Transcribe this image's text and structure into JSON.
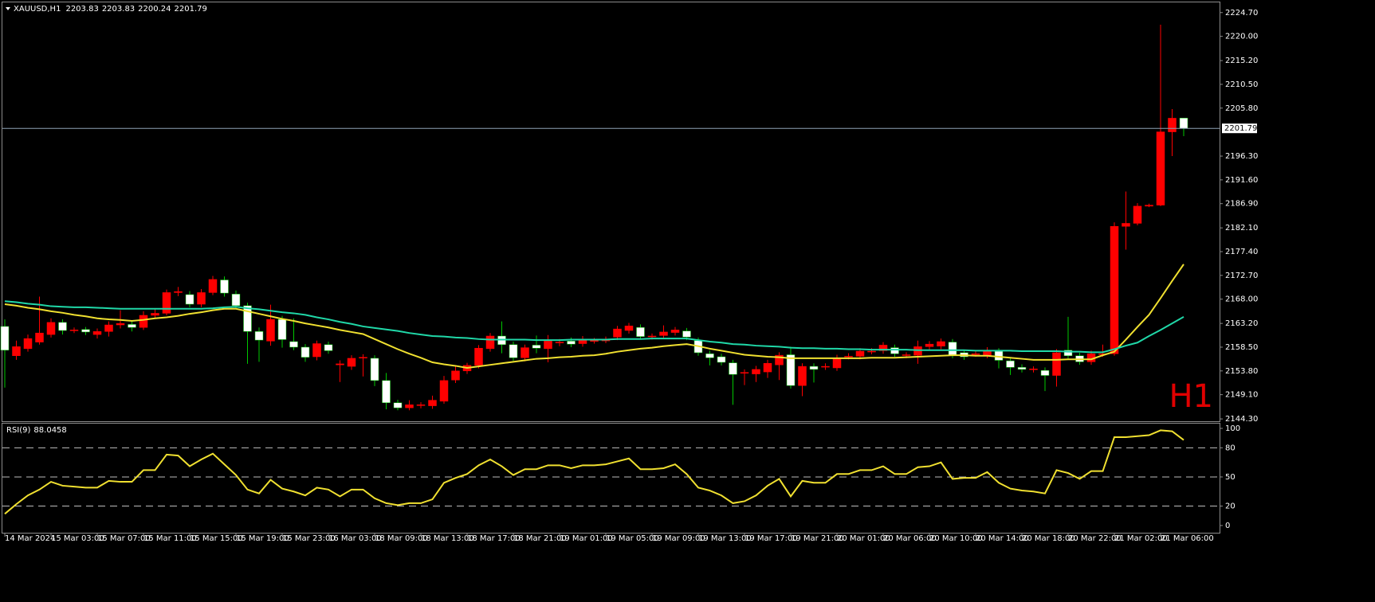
{
  "chart_data": [
    {
      "type": "candlestick",
      "symbol": "XAUUSD,H1",
      "watermark": "H1",
      "categories": [
        "14 Mar 2024",
        null,
        null,
        null,
        "15 Mar 03:00",
        null,
        null,
        null,
        "15 Mar 07:00",
        null,
        null,
        null,
        "15 Mar 11:00",
        null,
        null,
        null,
        "15 Mar 15:00",
        null,
        null,
        null,
        "15 Mar 19:00",
        null,
        null,
        null,
        "15 Mar 23:00",
        null,
        null,
        null,
        "16 Mar 03:00",
        null,
        null,
        null,
        "18 Mar 09:00",
        null,
        null,
        null,
        "18 Mar 13:00",
        null,
        null,
        null,
        "18 Mar 17:00",
        null,
        null,
        null,
        "18 Mar 21:00",
        null,
        null,
        null,
        "19 Mar 01:00",
        null,
        null,
        null,
        "19 Mar 05:00",
        null,
        null,
        null,
        "19 Mar 09:00",
        null,
        null,
        null,
        "19 Mar 13:00",
        null,
        null,
        null,
        "19 Mar 17:00",
        null,
        null,
        null,
        "19 Mar 21:00",
        null,
        null,
        null,
        "20 Mar 01:00",
        null,
        null,
        null,
        "20 Mar 06:00",
        null,
        null,
        null,
        "20 Mar 10:00",
        null,
        null,
        null,
        "20 Mar 14:00",
        null,
        null,
        null,
        "20 Mar 18:00",
        null,
        null,
        null,
        "20 Mar 22:00",
        null,
        null,
        null,
        "21 Mar 02:00",
        null,
        null,
        null,
        "21 Mar 06:00",
        null,
        null
      ],
      "open": [
        2162.6,
        2156.8,
        2158.2,
        2159.5,
        2161.0,
        2163.4,
        2161.8,
        2162.0,
        2161.0,
        2161.6,
        2162.9,
        2163.0,
        2162.4,
        2164.8,
        2165.2,
        2169.3,
        2168.9,
        2167.0,
        2169.3,
        2171.8,
        2169.0,
        2166.7,
        2161.6,
        2159.7,
        2164.0,
        2159.6,
        2158.5,
        2156.6,
        2159.0,
        2155.0,
        2154.7,
        2156.4,
        2156.3,
        2151.9,
        2147.5,
        2146.5,
        2147.0,
        2146.9,
        2147.8,
        2152.0,
        2153.8,
        2154.9,
        2158.2,
        2160.7,
        2159.0,
        2156.4,
        2158.9,
        2158.2,
        2159.4,
        2159.7,
        2159.2,
        2159.7,
        2159.8,
        2160.5,
        2161.8,
        2162.4,
        2160.6,
        2160.8,
        2161.4,
        2161.7,
        2159.8,
        2157.2,
        2156.6,
        2155.4,
        2153.4,
        2153.2,
        2153.6,
        2155.0,
        2157.0,
        2150.9,
        2154.7,
        2154.6,
        2154.4,
        2156.6,
        2156.7,
        2157.6,
        2157.8,
        2158.4,
        2156.9,
        2156.9,
        2158.6,
        2158.7,
        2159.5,
        2157.4,
        2157.1,
        2156.9,
        2157.7,
        2155.8,
        2154.5,
        2154.1,
        2153.9,
        2152.9,
        2157.9,
        2156.8,
        2155.6,
        2157.1,
        2157.2,
        2182.4,
        2183.0,
        2186.4,
        2186.6,
        2201.1,
        2203.83
      ],
      "high": [
        2164.0,
        2159.8,
        2161.0,
        2168.5,
        2164.2,
        2164.0,
        2162.4,
        2162.5,
        2162.2,
        2163.6,
        2165.8,
        2163.8,
        2165.6,
        2166.0,
        2169.9,
        2170.4,
        2169.6,
        2170.0,
        2172.6,
        2172.5,
        2169.7,
        2167.3,
        2162.4,
        2166.9,
        2164.7,
        2164.2,
        2159.1,
        2159.8,
        2159.6,
        2155.9,
        2156.9,
        2157.1,
        2156.9,
        2153.4,
        2148.1,
        2148.0,
        2147.6,
        2148.9,
        2152.8,
        2154.7,
        2155.4,
        2158.9,
        2161.3,
        2163.6,
        2159.6,
        2159.0,
        2160.8,
        2160.9,
        2160.1,
        2160.4,
        2160.7,
        2160.3,
        2160.6,
        2162.7,
        2163.3,
        2163.0,
        2161.2,
        2162.8,
        2162.5,
        2162.3,
        2160.4,
        2157.8,
        2157.2,
        2156.0,
        2154.1,
        2154.8,
        2156.0,
        2157.5,
        2158.6,
        2155.3,
        2155.3,
        2155.3,
        2157.0,
        2157.3,
        2158.3,
        2158.3,
        2159.5,
        2159.0,
        2157.5,
        2159.8,
        2159.7,
        2160.2,
        2160.1,
        2158.0,
        2157.8,
        2158.5,
        2158.3,
        2156.4,
        2155.1,
        2154.7,
        2154.5,
        2158.1,
        2164.5,
        2157.4,
        2157.8,
        2159.0,
        2183.2,
        2189.3,
        2187.0,
        2186.9,
        2222.3,
        2205.6,
        2203.83
      ],
      "low": [
        2150.5,
        2156.0,
        2157.6,
        2159.0,
        2160.4,
        2161.0,
        2161.3,
        2160.9,
        2160.2,
        2160.6,
        2162.2,
        2161.6,
        2161.9,
        2164.1,
        2164.8,
        2168.6,
        2166.4,
        2166.4,
        2168.8,
        2168.5,
        2166.0,
        2155.2,
        2155.6,
        2158.8,
        2158.4,
        2157.9,
        2155.6,
        2155.9,
        2157.2,
        2151.6,
        2154.0,
        2152.7,
        2150.8,
        2146.2,
        2146.0,
        2146.0,
        2146.4,
        2146.3,
        2147.3,
        2151.4,
        2153.2,
        2154.3,
        2157.6,
        2157.3,
        2155.8,
        2155.7,
        2157.3,
        2155.5,
        2158.7,
        2158.5,
        2158.6,
        2159.2,
        2159.3,
        2159.9,
        2161.2,
        2160.0,
        2160.0,
        2160.2,
        2160.8,
        2159.9,
        2156.8,
        2154.9,
        2154.9,
        2147.1,
        2151.0,
        2151.6,
        2152.4,
        2152.0,
        2150.3,
        2148.8,
        2151.5,
        2154.0,
        2153.8,
        2156.1,
        2156.1,
        2157.1,
        2157.2,
        2156.6,
        2156.3,
        2155.2,
        2158.0,
        2158.1,
        2156.3,
        2156.0,
        2156.6,
        2156.3,
        2154.3,
        2153.0,
        2153.5,
        2153.5,
        2149.8,
        2150.7,
        2156.2,
        2155.0,
        2155.0,
        2156.6,
        2156.8,
        2177.8,
        2182.6,
        2186.2,
        2186.4,
        2196.3,
        2200.24
      ],
      "close": [
        2157.9,
        2158.6,
        2160.2,
        2161.3,
        2163.4,
        2161.8,
        2161.9,
        2161.5,
        2161.6,
        2162.9,
        2163.2,
        2162.4,
        2164.8,
        2165.2,
        2169.3,
        2169.5,
        2167.0,
        2169.3,
        2171.9,
        2169.2,
        2166.7,
        2161.6,
        2159.9,
        2164.0,
        2160.0,
        2158.5,
        2156.5,
        2159.2,
        2157.8,
        2155.2,
        2156.3,
        2156.5,
        2151.9,
        2147.5,
        2146.5,
        2147.1,
        2147.1,
        2148.0,
        2151.9,
        2153.8,
        2154.9,
        2158.3,
        2160.7,
        2159.0,
        2156.4,
        2158.4,
        2158.3,
        2159.7,
        2159.5,
        2159.1,
        2159.8,
        2159.8,
        2159.9,
        2162.1,
        2162.7,
        2160.6,
        2160.7,
        2161.5,
        2161.9,
        2160.5,
        2157.4,
        2156.4,
        2155.5,
        2153.1,
        2153.5,
        2154.1,
        2155.3,
        2156.9,
        2150.9,
        2154.7,
        2154.1,
        2154.7,
        2156.4,
        2156.7,
        2157.7,
        2157.7,
        2158.9,
        2157.2,
        2157.0,
        2158.6,
        2159.1,
        2159.6,
        2156.9,
        2156.6,
        2157.2,
        2157.9,
        2155.9,
        2154.5,
        2154.1,
        2154.2,
        2152.9,
        2157.4,
        2156.8,
        2155.6,
        2157.2,
        2157.2,
        2182.4,
        2183.0,
        2186.4,
        2186.6,
        2201.1,
        2203.8,
        2201.79
      ],
      "up_color": "#ff0000",
      "down_color": "#ffffff",
      "up_wick_color": "#ff0000",
      "down_wick_color": "#00c800",
      "overlays": [
        {
          "color": "#f0e030",
          "values": [
            2167.0,
            2166.7,
            2166.3,
            2166.0,
            2165.6,
            2165.3,
            2164.9,
            2164.6,
            2164.2,
            2164.0,
            2163.9,
            2163.7,
            2163.9,
            2164.2,
            2164.4,
            2164.7,
            2165.1,
            2165.4,
            2165.8,
            2166.1,
            2166.1,
            2165.6,
            2165.1,
            2164.6,
            2164.1,
            2163.7,
            2163.2,
            2162.8,
            2162.4,
            2161.9,
            2161.5,
            2161.1,
            2160.1,
            2159.1,
            2158.1,
            2157.2,
            2156.4,
            2155.5,
            2155.1,
            2154.8,
            2154.4,
            2154.7,
            2155.0,
            2155.3,
            2155.6,
            2155.9,
            2156.2,
            2156.3,
            2156.5,
            2156.6,
            2156.8,
            2156.9,
            2157.2,
            2157.6,
            2157.9,
            2158.2,
            2158.4,
            2158.7,
            2158.9,
            2159.1,
            2158.7,
            2158.2,
            2157.8,
            2157.4,
            2157.0,
            2156.8,
            2156.6,
            2156.5,
            2156.3,
            2156.3,
            2156.3,
            2156.3,
            2156.3,
            2156.3,
            2156.3,
            2156.4,
            2156.4,
            2156.4,
            2156.5,
            2156.6,
            2156.7,
            2156.8,
            2156.9,
            2156.9,
            2156.8,
            2156.8,
            2156.6,
            2156.4,
            2156.2,
            2156.0,
            2156.0,
            2156.0,
            2156.1,
            2156.1,
            2156.1,
            2156.9,
            2157.6,
            2160.0,
            2162.5,
            2164.9,
            2168.2,
            2171.6,
            2174.9
          ]
        },
        {
          "color": "#20d8a8",
          "values": [
            2167.6,
            2167.4,
            2167.1,
            2166.9,
            2166.6,
            2166.5,
            2166.4,
            2166.4,
            2166.3,
            2166.2,
            2166.1,
            2166.1,
            2166.1,
            2166.1,
            2166.1,
            2166.1,
            2166.1,
            2166.1,
            2166.2,
            2166.4,
            2166.5,
            2166.2,
            2166.0,
            2165.7,
            2165.4,
            2165.2,
            2164.9,
            2164.4,
            2164.0,
            2163.5,
            2163.1,
            2162.6,
            2162.3,
            2162.0,
            2161.7,
            2161.3,
            2161.0,
            2160.7,
            2160.6,
            2160.4,
            2160.3,
            2160.1,
            2160.0,
            2160.0,
            2160.0,
            2160.0,
            2159.9,
            2159.9,
            2159.9,
            2160.0,
            2160.0,
            2160.0,
            2160.0,
            2160.1,
            2160.1,
            2160.1,
            2160.2,
            2160.2,
            2160.2,
            2160.2,
            2159.9,
            2159.6,
            2159.4,
            2159.1,
            2159.0,
            2158.8,
            2158.7,
            2158.6,
            2158.4,
            2158.3,
            2158.3,
            2158.2,
            2158.2,
            2158.1,
            2158.1,
            2158.0,
            2158.0,
            2158.0,
            2158.0,
            2157.9,
            2157.9,
            2157.9,
            2157.9,
            2157.9,
            2157.8,
            2157.8,
            2157.8,
            2157.8,
            2157.7,
            2157.7,
            2157.7,
            2157.7,
            2157.6,
            2157.6,
            2157.5,
            2157.5,
            2158.1,
            2158.8,
            2159.4,
            2160.7,
            2161.9,
            2163.2,
            2164.5
          ]
        }
      ],
      "price_line_color": "#8ea2b6",
      "ylim": [
        2144.0,
        2226.4
      ],
      "yticks": [
        {
          "value": 2224.7,
          "label": "2224.70"
        },
        {
          "value": 2220.0,
          "label": "2220.00"
        },
        {
          "value": 2215.2,
          "label": "2215.20"
        },
        {
          "value": 2210.5,
          "label": "2210.50"
        },
        {
          "value": 2205.8,
          "label": "2205.80"
        },
        {
          "value": 2196.3,
          "label": "2196.30"
        },
        {
          "value": 2191.6,
          "label": "2191.60"
        },
        {
          "value": 2186.9,
          "label": "2186.90"
        },
        {
          "value": 2182.1,
          "label": "2182.10"
        },
        {
          "value": 2177.4,
          "label": "2177.40"
        },
        {
          "value": 2172.7,
          "label": "2172.70"
        },
        {
          "value": 2168.0,
          "label": "2168.00"
        },
        {
          "value": 2163.2,
          "label": "2163.20"
        },
        {
          "value": 2158.5,
          "label": "2158.50"
        },
        {
          "value": 2153.8,
          "label": "2153.80"
        },
        {
          "value": 2149.1,
          "label": "2149.10"
        },
        {
          "value": 2144.3,
          "label": "2144.30"
        }
      ]
    },
    {
      "type": "line",
      "title": "RSI(9)",
      "color": "#f0e030",
      "values": [
        12,
        22,
        31,
        37,
        45,
        41,
        40,
        39,
        39,
        46,
        45,
        45,
        57,
        57,
        73,
        72,
        61,
        68,
        74,
        63,
        52,
        37,
        33,
        47,
        38,
        35,
        31,
        39,
        37,
        30,
        37,
        37,
        28,
        23,
        21,
        23,
        23,
        27,
        44,
        49,
        53,
        62,
        68,
        61,
        52,
        58,
        58,
        62,
        62,
        59,
        62,
        62,
        63,
        66,
        69,
        58,
        58,
        59,
        63,
        53,
        39,
        36,
        31,
        23,
        25,
        31,
        41,
        48,
        30,
        46,
        44,
        44,
        53,
        53,
        57,
        57,
        61,
        53,
        53,
        60,
        61,
        65,
        48,
        49,
        49,
        55,
        44,
        38,
        36,
        35,
        33,
        57,
        54,
        48,
        56,
        56,
        91,
        91,
        92,
        93,
        98,
        97,
        88.0458
      ],
      "ylim": [
        -6.6,
        104.9
      ],
      "yticks": [
        100,
        80,
        50,
        20,
        0
      ],
      "levels": [
        80,
        50,
        20
      ]
    }
  ]
}
